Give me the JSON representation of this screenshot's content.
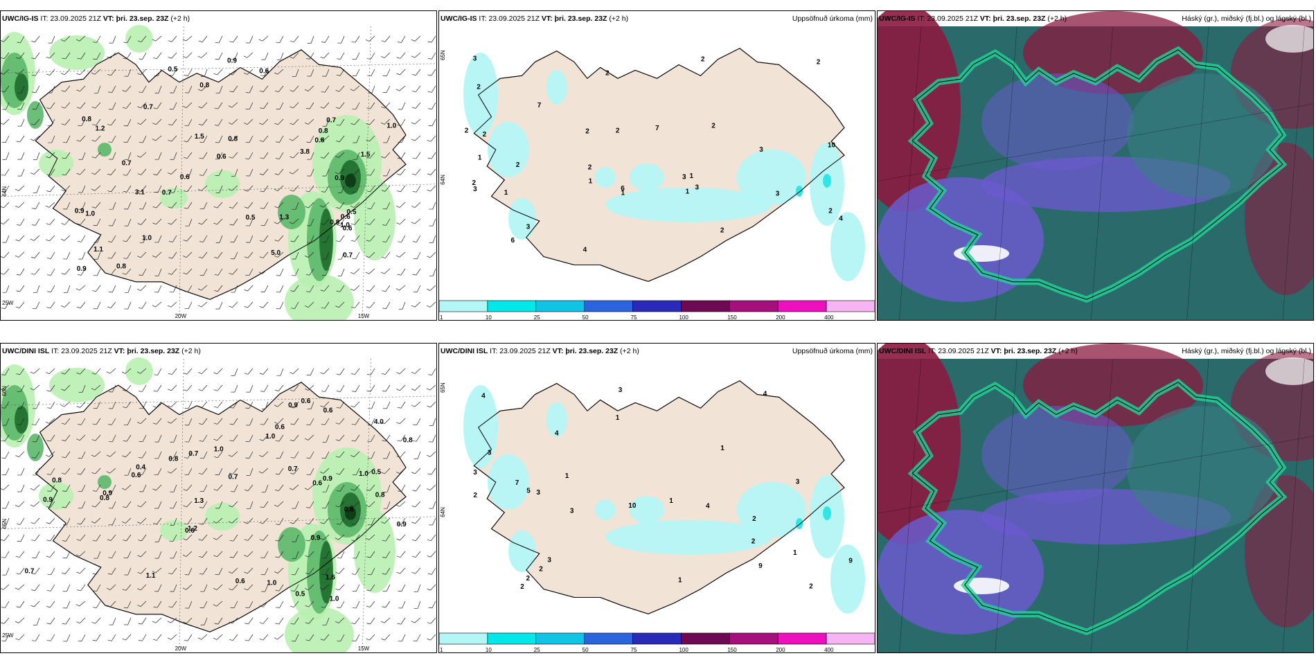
{
  "colors": {
    "land": "#f1e4d6",
    "green_light": "#b8efb0",
    "green_mid": "#5cb86a",
    "green_dark": "#1f6b2e",
    "green_darkest": "#0c3d16",
    "cyan_light": "#b4f6f6",
    "cyan": "#32e6e6",
    "teal_dark": "#2a6a6a",
    "purple": "#6a5acd",
    "maroon": "#8b1a3f",
    "seafoam": "#20d49a"
  },
  "colorbar": {
    "colors": [
      "#b4f6f6",
      "#00e8e8",
      "#10c4e4",
      "#2c64e0",
      "#2a2ab8",
      "#6e0a54",
      "#a4107c",
      "#ee10bc",
      "#f6b4f2"
    ],
    "labels": [
      "1",
      "10",
      "25",
      "50",
      "75",
      "100",
      "150",
      "200",
      "400"
    ]
  },
  "axis_labels": {
    "lon20": "20W",
    "lon15": "15W",
    "lon25": "25W",
    "lat64": "64N",
    "lat65": "65N",
    "lat66": "66N"
  },
  "panels": [
    {
      "model": "UWC/IG-IS",
      "it_label": "IT:",
      "it_value": "23.09.2025 21Z",
      "vt_label": "VT:",
      "vt_value": "þri. 23.sep. 23Z",
      "lead": "(+2 h)",
      "title": "",
      "numbers": [
        "0.6",
        "0.7",
        "0.9",
        "0.8",
        "0.5",
        "0.6",
        "0.8",
        "1.0",
        "0.7",
        "0.6",
        "0.8",
        "0.9",
        "1.1",
        "0.9",
        "0.7",
        "1.0",
        "1.5",
        "0.9",
        "0.7",
        "0.6",
        "0.5",
        "0.8",
        "0.7",
        "1.3",
        "3.1",
        "5.0",
        "3.8",
        "1.0",
        "0.5",
        "1.5",
        "0.8",
        "0.6",
        "0.8",
        "1.2",
        "0.8",
        "1.0"
      ]
    },
    {
      "model": "UWC/IG-IS",
      "it_label": "IT:",
      "it_value": "23.09.2025 21Z",
      "vt_label": "VT:",
      "vt_value": "þri. 23.sep. 23Z",
      "lead": "(+2 h)",
      "title": "Uppsöfnuð úrkoma (mm)",
      "numbers": [
        "3",
        "2",
        "2",
        "1",
        "2",
        "2",
        "3",
        "1",
        "2",
        "7",
        "3",
        "2",
        "1",
        "6",
        "3",
        "2",
        "2",
        "3",
        "4",
        "7",
        "2",
        "3",
        "1",
        "6",
        "3",
        "2",
        "2",
        "1",
        "2",
        "4",
        "10",
        "1",
        "2",
        "2"
      ]
    },
    {
      "model": "UWC/IG-IS",
      "it_label": "IT:",
      "it_value": "23.09.2025 21Z",
      "vt_label": "VT:",
      "vt_value": "þri. 23.sep. 23Z",
      "lead": "(+2 h)",
      "title": "Háský (gr.), miðský (fj.bl.) og lágský (bl.)",
      "numbers": []
    },
    {
      "model": "UWC/DINI ISL",
      "it_label": "IT:",
      "it_value": "23.09.2025 21Z",
      "vt_label": "VT:",
      "vt_value": "þri. 23.sep. 23Z",
      "lead": "(+2 h)",
      "title": "",
      "numbers": [
        "0.8",
        "0.9",
        "0.7",
        "1.1",
        "0.6",
        "0.7",
        "0.6",
        "0.7",
        "0.6",
        "0.9",
        "1.0",
        "0.8",
        "0.6",
        "0.5",
        "1.0",
        "0.9",
        "0.7",
        "1.0",
        "0.8",
        "0.9",
        "0.6",
        "0.5",
        "1.0",
        "0.6",
        "1.0",
        "0.4",
        "0.9",
        "4.0",
        "0.6",
        "1.3",
        "0.9",
        "0.8",
        "1.6",
        "1.2",
        "0.8",
        "0.6"
      ]
    },
    {
      "model": "UWC/DINI ISL",
      "it_label": "IT:",
      "it_value": "23.09.2025 21Z",
      "vt_label": "VT:",
      "vt_value": "þri. 23.sep. 23Z",
      "lead": "(+2 h)",
      "title": "Uppsöfnuð úrkoma (mm)",
      "numbers": [
        "2",
        "1",
        "1",
        "1",
        "3",
        "3",
        "2",
        "4",
        "3",
        "5",
        "3",
        "4",
        "7",
        "2",
        "3",
        "9",
        "2",
        "1",
        "4",
        "2",
        "3",
        "1",
        "4",
        "9",
        "2",
        "2",
        "10",
        "3",
        "1"
      ]
    },
    {
      "model": "UWC/DINI ISL",
      "it_label": "IT:",
      "it_value": "23.09.2025 21Z",
      "vt_label": "VT:",
      "vt_value": "þri. 23.sep. 23Z",
      "lead": "(+2 h)",
      "title": "Háský (gr.), miðský (fj.bl.) og lágský (bl.)",
      "numbers": []
    }
  ]
}
